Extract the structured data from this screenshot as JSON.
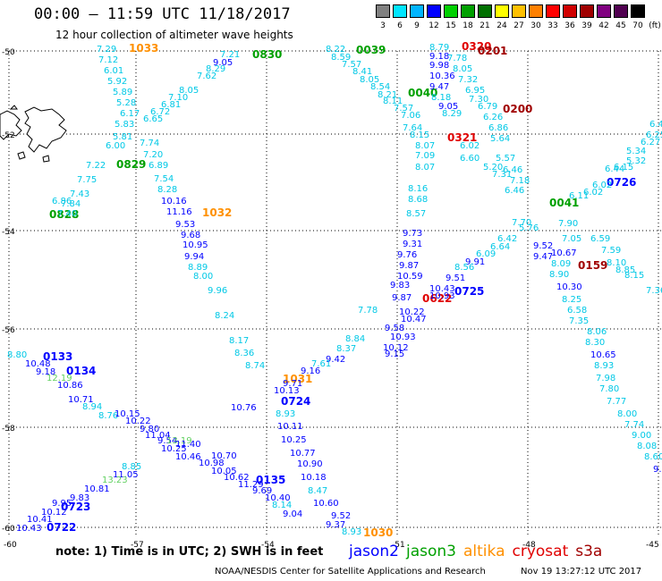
{
  "header": {
    "title": "00:00 – 11:59 UTC 11/18/2017",
    "subtitle": "12 hour collection of altimeter wave heights"
  },
  "colorbar": {
    "unit_label": "(ft)",
    "levels": [
      "3",
      "6",
      "9",
      "12",
      "15",
      "18",
      "21",
      "24",
      "27",
      "30",
      "33",
      "36",
      "39",
      "42",
      "45",
      "70"
    ],
    "colors": [
      "#808080",
      "#00e5ff",
      "#00b4ff",
      "#0000ff",
      "#00d000",
      "#00a000",
      "#007000",
      "#ffff00",
      "#ffc000",
      "#ff8000",
      "#ff0000",
      "#d00000",
      "#a00000",
      "#800080",
      "#500050",
      "#000000"
    ]
  },
  "map": {
    "lat_labels": [
      "-50",
      "-52",
      "-54",
      "-56",
      "-58",
      "-60"
    ],
    "lon_labels": [
      "-60",
      "-57",
      "-54",
      "-51",
      "-48",
      "-45"
    ],
    "lat_range": [
      -60,
      -50
    ],
    "lon_range": [
      -60,
      -45
    ],
    "grid": "dotted",
    "land": "Falkland Islands"
  },
  "value_colors": {
    "c": "#00c8e6",
    "b": "#0000ff",
    "lb": "#1e64ff",
    "g": "#00a000",
    "lg": "#60d060",
    "o": "#ff9000",
    "r": "#e00000",
    "dr": "#a00000"
  },
  "readings": [
    {
      "t": "1033",
      "c": "o"
    },
    {
      "t": "0830",
      "c": "g"
    },
    {
      "t": "0039",
      "c": "g"
    },
    {
      "t": "0040",
      "c": "g"
    },
    {
      "t": "0320",
      "c": "r"
    },
    {
      "t": "0201",
      "c": "dr"
    },
    {
      "t": "0200",
      "c": "dr"
    },
    {
      "t": "0321",
      "c": "r"
    },
    {
      "t": "0829",
      "c": "g"
    },
    {
      "t": "0828",
      "c": "g"
    },
    {
      "t": "1032",
      "c": "o"
    },
    {
      "t": "0726",
      "c": "b"
    },
    {
      "t": "0041",
      "c": "g"
    },
    {
      "t": "0159",
      "c": "dr"
    },
    {
      "t": "0725",
      "c": "b"
    },
    {
      "t": "0622",
      "c": "r"
    },
    {
      "t": "0133",
      "c": "b"
    },
    {
      "t": "0134",
      "c": "b"
    },
    {
      "t": "1031",
      "c": "o"
    },
    {
      "t": "0724",
      "c": "b"
    },
    {
      "t": "0135",
      "c": "b"
    },
    {
      "t": "0723",
      "c": "b"
    },
    {
      "t": "0722",
      "c": "b"
    },
    {
      "t": "1030",
      "c": "o"
    },
    {
      "t": "7.29",
      "c": "c"
    },
    {
      "t": "7.12",
      "c": "c"
    },
    {
      "t": "6.01",
      "c": "c"
    },
    {
      "t": "5.92",
      "c": "c"
    },
    {
      "t": "5.89",
      "c": "c"
    },
    {
      "t": "5.28",
      "c": "c"
    },
    {
      "t": "6.17",
      "c": "c"
    },
    {
      "t": "5.83",
      "c": "c"
    },
    {
      "t": "5.81",
      "c": "c"
    },
    {
      "t": "6.00",
      "c": "c"
    },
    {
      "t": "7.22",
      "c": "c"
    },
    {
      "t": "7.75",
      "c": "c"
    },
    {
      "t": "7.43",
      "c": "c"
    },
    {
      "t": "7.40",
      "c": "c"
    },
    {
      "t": "7.84",
      "c": "c"
    },
    {
      "t": "6.86",
      "c": "c"
    },
    {
      "t": "7.21",
      "c": "c"
    },
    {
      "t": "9.05",
      "c": "b"
    },
    {
      "t": "8.29",
      "c": "c"
    },
    {
      "t": "7.62",
      "c": "c"
    },
    {
      "t": "8.05",
      "c": "c"
    },
    {
      "t": "7.10",
      "c": "c"
    },
    {
      "t": "6.81",
      "c": "c"
    },
    {
      "t": "6.72",
      "c": "c"
    },
    {
      "t": "6.65",
      "c": "c"
    },
    {
      "t": "7.74",
      "c": "c"
    },
    {
      "t": "7.20",
      "c": "c"
    },
    {
      "t": "6.89",
      "c": "c"
    },
    {
      "t": "7.54",
      "c": "c"
    },
    {
      "t": "8.28",
      "c": "c"
    },
    {
      "t": "10.16",
      "c": "b"
    },
    {
      "t": "11.16",
      "c": "b"
    },
    {
      "t": "9.53",
      "c": "b"
    },
    {
      "t": "9.68",
      "c": "b"
    },
    {
      "t": "10.95",
      "c": "b"
    },
    {
      "t": "9.94",
      "c": "b"
    },
    {
      "t": "8.89",
      "c": "c"
    },
    {
      "t": "8.00",
      "c": "c"
    },
    {
      "t": "9.96",
      "c": "c"
    },
    {
      "t": "8.24",
      "c": "c"
    },
    {
      "t": "8.17",
      "c": "c"
    },
    {
      "t": "8.36",
      "c": "c"
    },
    {
      "t": "8.74",
      "c": "c"
    },
    {
      "t": "8.22",
      "c": "c"
    },
    {
      "t": "8.59",
      "c": "c"
    },
    {
      "t": "7.57",
      "c": "c"
    },
    {
      "t": "8.41",
      "c": "c"
    },
    {
      "t": "8.05",
      "c": "c"
    },
    {
      "t": "8.54",
      "c": "c"
    },
    {
      "t": "8.21",
      "c": "c"
    },
    {
      "t": "8.11",
      "c": "c"
    },
    {
      "t": "7.57",
      "c": "c"
    },
    {
      "t": "7.06",
      "c": "c"
    },
    {
      "t": "7.64",
      "c": "c"
    },
    {
      "t": "8.15",
      "c": "c"
    },
    {
      "t": "8.07",
      "c": "c"
    },
    {
      "t": "7.09",
      "c": "c"
    },
    {
      "t": "8.07",
      "c": "c"
    },
    {
      "t": "8.16",
      "c": "c"
    },
    {
      "t": "8.68",
      "c": "c"
    },
    {
      "t": "8.57",
      "c": "c"
    },
    {
      "t": "9.73",
      "c": "b"
    },
    {
      "t": "9.31",
      "c": "b"
    },
    {
      "t": "9.76",
      "c": "b"
    },
    {
      "t": "9.87",
      "c": "b"
    },
    {
      "t": "10.59",
      "c": "b"
    },
    {
      "t": "9.83",
      "c": "b"
    },
    {
      "t": "9.87",
      "c": "b"
    },
    {
      "t": "10.22",
      "c": "b"
    },
    {
      "t": "10.47",
      "c": "b"
    },
    {
      "t": "9.58",
      "c": "b"
    },
    {
      "t": "10.93",
      "c": "b"
    },
    {
      "t": "10.12",
      "c": "b"
    },
    {
      "t": "9.15",
      "c": "b"
    },
    {
      "t": "8.79",
      "c": "c"
    },
    {
      "t": "9.18",
      "c": "b"
    },
    {
      "t": "9.98",
      "c": "b"
    },
    {
      "t": "10.36",
      "c": "b"
    },
    {
      "t": "9.47",
      "c": "b"
    },
    {
      "t": "8.18",
      "c": "c"
    },
    {
      "t": "9.05",
      "c": "b"
    },
    {
      "t": "8.29",
      "c": "c"
    },
    {
      "t": "7.78",
      "c": "c"
    },
    {
      "t": "8.05",
      "c": "c"
    },
    {
      "t": "7.32",
      "c": "c"
    },
    {
      "t": "6.95",
      "c": "c"
    },
    {
      "t": "7.30",
      "c": "c"
    },
    {
      "t": "6.79",
      "c": "c"
    },
    {
      "t": "6.26",
      "c": "c"
    },
    {
      "t": "6.86",
      "c": "c"
    },
    {
      "t": "5.64",
      "c": "c"
    },
    {
      "t": "6.02",
      "c": "c"
    },
    {
      "t": "6.60",
      "c": "c"
    },
    {
      "t": "5.57",
      "c": "c"
    },
    {
      "t": "5.20",
      "c": "c"
    },
    {
      "t": "6.46",
      "c": "c"
    },
    {
      "t": "7.31",
      "c": "c"
    },
    {
      "t": "7.18",
      "c": "c"
    },
    {
      "t": "6.46",
      "c": "c"
    },
    {
      "t": "7.70",
      "c": "c"
    },
    {
      "t": "5.76",
      "c": "c"
    },
    {
      "t": "7.90",
      "c": "c"
    },
    {
      "t": "7.05",
      "c": "c"
    },
    {
      "t": "6.59",
      "c": "c"
    },
    {
      "t": "7.59",
      "c": "c"
    },
    {
      "t": "8.10",
      "c": "c"
    },
    {
      "t": "8.85",
      "c": "c"
    },
    {
      "t": "8.15",
      "c": "c"
    },
    {
      "t": "7.36",
      "c": "c"
    },
    {
      "t": "6.41",
      "c": "c"
    },
    {
      "t": "6.25",
      "c": "c"
    },
    {
      "t": "6.27",
      "c": "c"
    },
    {
      "t": "5.34",
      "c": "c"
    },
    {
      "t": "5.32",
      "c": "c"
    },
    {
      "t": "6.15",
      "c": "c"
    },
    {
      "t": "6.44",
      "c": "c"
    },
    {
      "t": "6.02",
      "c": "c"
    },
    {
      "t": "6.02",
      "c": "c"
    },
    {
      "t": "6.11",
      "c": "c"
    },
    {
      "t": "6.42",
      "c": "c"
    },
    {
      "t": "6.64",
      "c": "c"
    },
    {
      "t": "6.09",
      "c": "c"
    },
    {
      "t": "9.91",
      "c": "b"
    },
    {
      "t": "8.56",
      "c": "c"
    },
    {
      "t": "9.51",
      "c": "b"
    },
    {
      "t": "10.43",
      "c": "b"
    },
    {
      "t": "10.93",
      "c": "b"
    },
    {
      "t": "9.52",
      "c": "b"
    },
    {
      "t": "9.47",
      "c": "b"
    },
    {
      "t": "10.67",
      "c": "b"
    },
    {
      "t": "8.09",
      "c": "c"
    },
    {
      "t": "8.90",
      "c": "c"
    },
    {
      "t": "10.30",
      "c": "b"
    },
    {
      "t": "8.25",
      "c": "c"
    },
    {
      "t": "6.58",
      "c": "c"
    },
    {
      "t": "7.35",
      "c": "c"
    },
    {
      "t": "8.06",
      "c": "c"
    },
    {
      "t": "8.30",
      "c": "c"
    },
    {
      "t": "10.65",
      "c": "b"
    },
    {
      "t": "8.93",
      "c": "c"
    },
    {
      "t": "7.98",
      "c": "c"
    },
    {
      "t": "7.80",
      "c": "c"
    },
    {
      "t": "7.77",
      "c": "c"
    },
    {
      "t": "8.00",
      "c": "c"
    },
    {
      "t": "7.74",
      "c": "c"
    },
    {
      "t": "9.00",
      "c": "c"
    },
    {
      "t": "8.08",
      "c": "c"
    },
    {
      "t": "8.60",
      "c": "c"
    },
    {
      "t": "9.02",
      "c": "b"
    },
    {
      "t": "7.78",
      "c": "c"
    },
    {
      "t": "8.84",
      "c": "c"
    },
    {
      "t": "8.37",
      "c": "c"
    },
    {
      "t": "9.42",
      "c": "b"
    },
    {
      "t": "7.61",
      "c": "c"
    },
    {
      "t": "9.16",
      "c": "b"
    },
    {
      "t": "9.71",
      "c": "b"
    },
    {
      "t": "10.13",
      "c": "b"
    },
    {
      "t": "8.93",
      "c": "c"
    },
    {
      "t": "10.11",
      "c": "b"
    },
    {
      "t": "10.25",
      "c": "b"
    },
    {
      "t": "10.77",
      "c": "b"
    },
    {
      "t": "10.90",
      "c": "b"
    },
    {
      "t": "10.18",
      "c": "b"
    },
    {
      "t": "8.47",
      "c": "c"
    },
    {
      "t": "10.60",
      "c": "b"
    },
    {
      "t": "9.52",
      "c": "b"
    },
    {
      "t": "9.37",
      "c": "b"
    },
    {
      "t": "8.93",
      "c": "c"
    },
    {
      "t": "8.80",
      "c": "c"
    },
    {
      "t": "10.48",
      "c": "b"
    },
    {
      "t": "9.18",
      "c": "b"
    },
    {
      "t": "12.19",
      "c": "lg"
    },
    {
      "t": "10.86",
      "c": "b"
    },
    {
      "t": "10.71",
      "c": "b"
    },
    {
      "t": "8.94",
      "c": "c"
    },
    {
      "t": "8.76",
      "c": "c"
    },
    {
      "t": "10.15",
      "c": "b"
    },
    {
      "t": "10.22",
      "c": "b"
    },
    {
      "t": "9.80",
      "c": "b"
    },
    {
      "t": "11.04",
      "c": "b"
    },
    {
      "t": "9.54",
      "c": "b"
    },
    {
      "t": "13.19",
      "c": "lg"
    },
    {
      "t": "11.40",
      "c": "b"
    },
    {
      "t": "10.25",
      "c": "b"
    },
    {
      "t": "10.46",
      "c": "b"
    },
    {
      "t": "10.98",
      "c": "b"
    },
    {
      "t": "10.05",
      "c": "b"
    },
    {
      "t": "10.62",
      "c": "b"
    },
    {
      "t": "11.29",
      "c": "b"
    },
    {
      "t": "9.69",
      "c": "b"
    },
    {
      "t": "10.40",
      "c": "b"
    },
    {
      "t": "8.14",
      "c": "c"
    },
    {
      "t": "9.04",
      "c": "b"
    },
    {
      "t": "10.70",
      "c": "b"
    },
    {
      "t": "10.76",
      "c": "b"
    },
    {
      "t": "8.85",
      "c": "c"
    },
    {
      "t": "11.05",
      "c": "b"
    },
    {
      "t": "13.23",
      "c": "lg"
    },
    {
      "t": "10.81",
      "c": "b"
    },
    {
      "t": "9.83",
      "c": "b"
    },
    {
      "t": "9.95",
      "c": "b"
    },
    {
      "t": "10.12",
      "c": "b"
    },
    {
      "t": "10.41",
      "c": "b"
    },
    {
      "t": "10.43",
      "c": "b"
    },
    {
      "t": "10.63",
      "c": "b"
    },
    {
      "t": "10.19",
      "c": "b"
    },
    {
      "t": "9.75",
      "c": "b"
    }
  ],
  "satellites": [
    {
      "name": "jason2",
      "color": "#0000ff"
    },
    {
      "name": "jason3",
      "color": "#00a000"
    },
    {
      "name": "altika",
      "color": "#ff9000"
    },
    {
      "name": "cryosat",
      "color": "#e00000"
    },
    {
      "name": "s3a",
      "color": "#a00000"
    }
  ],
  "note": "note:  1) Time is in UTC;  2) SWH is in feet",
  "credit": "NOAA/NESDIS Center for Satellite Applications and Research",
  "timestamp": "Nov 19 13:27:12 UTC 2017"
}
